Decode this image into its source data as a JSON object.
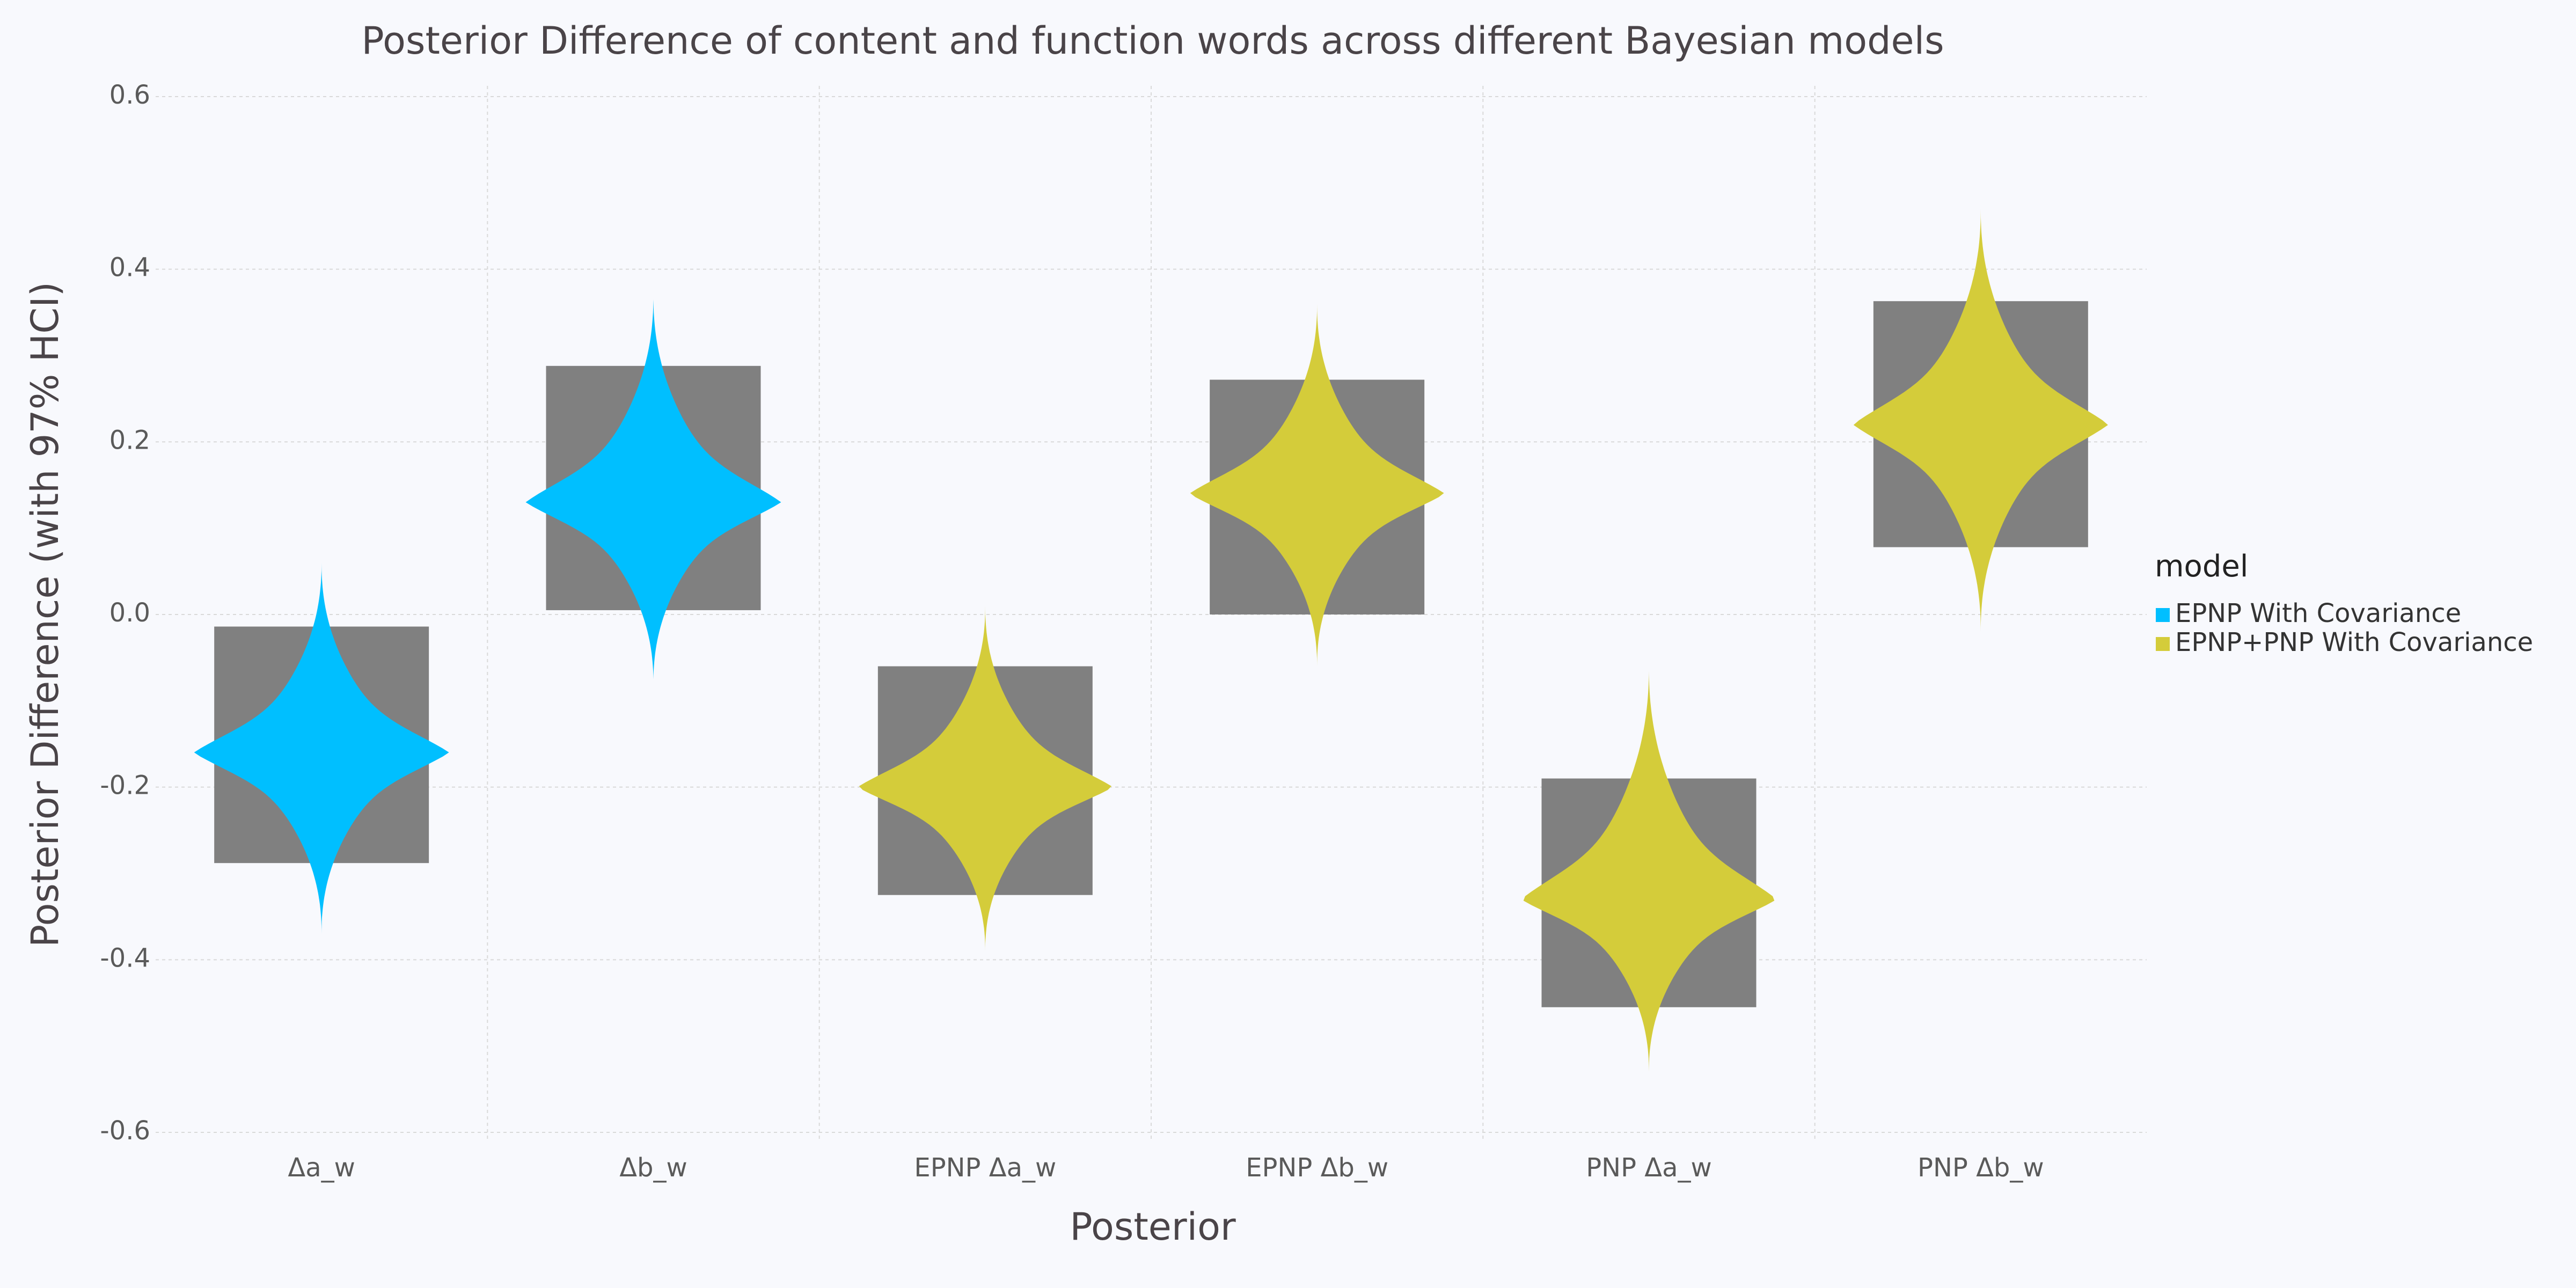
{
  "chart_data": {
    "type": "violin",
    "title": "Posterior Difference of content and function words across different Bayesian models",
    "xlabel": "Posterior",
    "ylabel": "Posterior Difference (with 97% HCI)",
    "ylim": [
      -0.6,
      0.6
    ],
    "yticks": [
      "0.6",
      "0.4",
      "0.2",
      "0.0",
      "-0.2",
      "-0.4",
      "-0.6"
    ],
    "ytick_values": [
      0.6,
      0.4,
      0.2,
      0.0,
      -0.2,
      -0.4,
      -0.6
    ],
    "categories": [
      "Δa_w",
      "Δb_w",
      "EPNP Δa_w",
      "EPNP Δb_w",
      "PNP Δa_w",
      "PNP Δb_w"
    ],
    "grid": true,
    "legend": {
      "title": "model",
      "placement": "right",
      "entries": [
        {
          "name": "EPNP With Covariance",
          "color": "#00bfff"
        },
        {
          "name": "EPNP+PNP With Covariance",
          "color": "#d4cc3a"
        }
      ]
    },
    "hci_color": "#808080",
    "violins": [
      {
        "category": "Δa_w",
        "model": "EPNP With Covariance",
        "mode": -0.16,
        "min": -0.37,
        "max": 0.06,
        "hci_low": -0.288,
        "hci_high": -0.014
      },
      {
        "category": "Δb_w",
        "model": "EPNP With Covariance",
        "mode": 0.13,
        "min": -0.08,
        "max": 0.37,
        "hci_low": 0.005,
        "hci_high": 0.288
      },
      {
        "category": "EPNP Δa_w",
        "model": "EPNP+PNP With Covariance",
        "mode": -0.2,
        "min": -0.39,
        "max": 0.01,
        "hci_low": -0.325,
        "hci_high": -0.06
      },
      {
        "category": "EPNP Δb_w",
        "model": "EPNP+PNP With Covariance",
        "mode": 0.14,
        "min": -0.06,
        "max": 0.36,
        "hci_low": 0.0,
        "hci_high": 0.272
      },
      {
        "category": "PNP Δa_w",
        "model": "EPNP+PNP With Covariance",
        "mode": -0.33,
        "min": -0.53,
        "max": -0.06,
        "hci_low": -0.455,
        "hci_high": -0.19
      },
      {
        "category": "PNP Δb_w",
        "model": "EPNP+PNP With Covariance",
        "mode": 0.22,
        "min": -0.02,
        "max": 0.47,
        "hci_low": 0.078,
        "hci_high": 0.363
      }
    ]
  }
}
